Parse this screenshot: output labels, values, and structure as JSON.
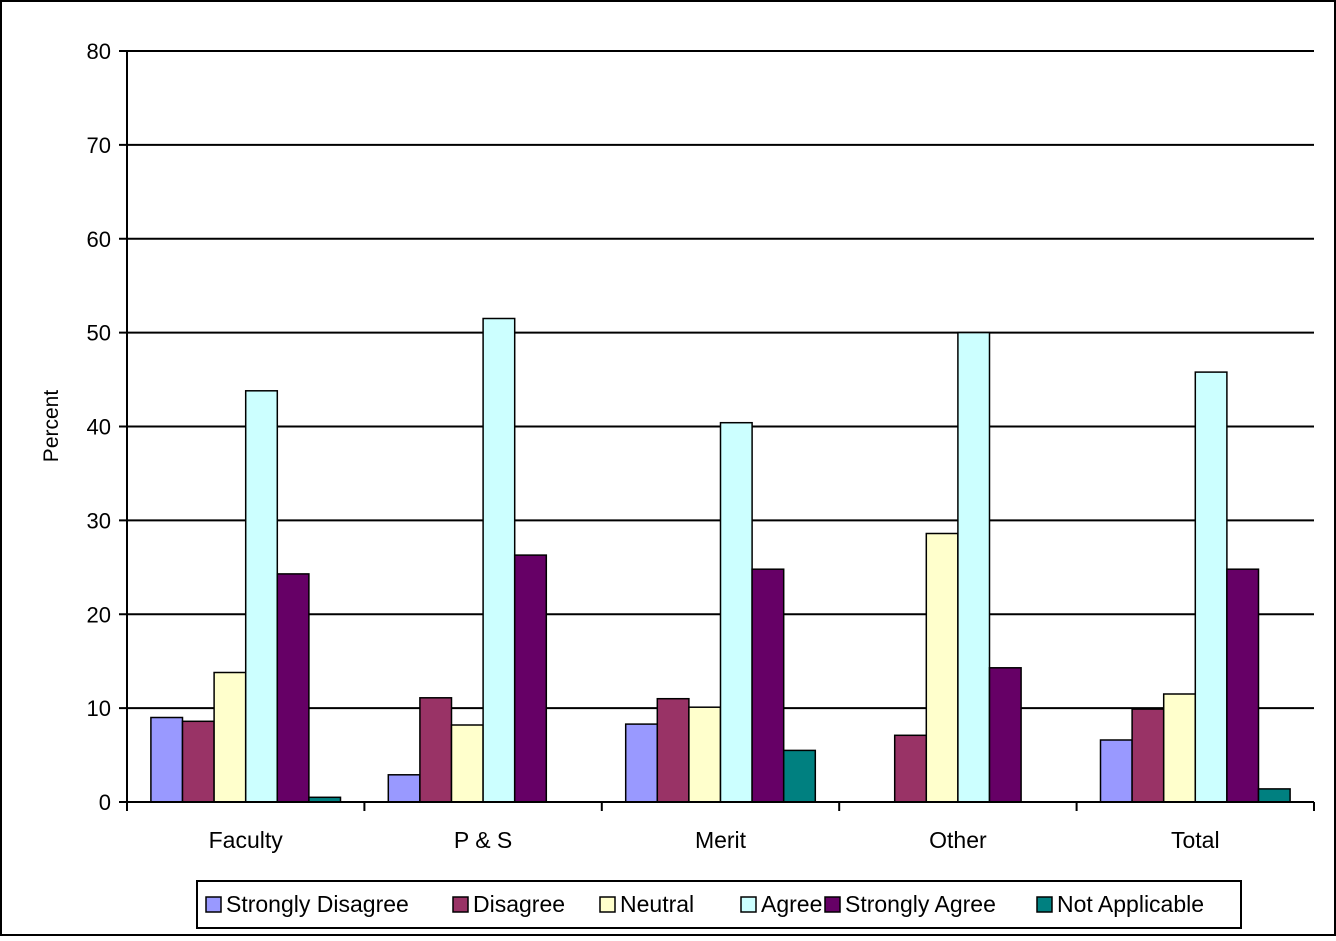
{
  "chart_data": {
    "type": "bar",
    "title": "",
    "xlabel": "",
    "ylabel": "Percent",
    "ylim": [
      0,
      80
    ],
    "yticks": [
      0,
      10,
      20,
      30,
      40,
      50,
      60,
      70,
      80
    ],
    "grid": true,
    "legend_position": "bottom",
    "categories": [
      "Faculty",
      "P & S",
      "Merit",
      "Other",
      "Total"
    ],
    "series": [
      {
        "name": "Strongly Disagree",
        "color": "#9999FF",
        "values": [
          9.0,
          2.9,
          8.3,
          0,
          6.6
        ]
      },
      {
        "name": "Disagree",
        "color": "#993366",
        "values": [
          8.6,
          11.1,
          11.0,
          7.1,
          9.9
        ]
      },
      {
        "name": "Neutral",
        "color": "#FFFFCC",
        "values": [
          13.8,
          8.2,
          10.1,
          28.6,
          11.5
        ]
      },
      {
        "name": "Agree",
        "color": "#CCFFFF",
        "values": [
          43.8,
          51.5,
          40.4,
          50.0,
          45.8
        ]
      },
      {
        "name": "Strongly Agree",
        "color": "#660066",
        "values": [
          24.3,
          26.3,
          24.8,
          14.3,
          24.8
        ]
      },
      {
        "name": "Not Applicable",
        "color": "#008080",
        "values": [
          0.5,
          0,
          5.5,
          0,
          1.4
        ]
      }
    ]
  }
}
